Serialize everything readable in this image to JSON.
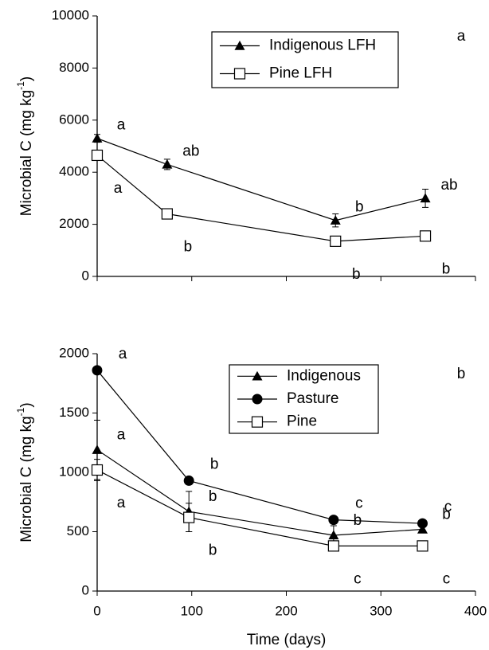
{
  "chart_data": [
    {
      "type": "line",
      "panel_label": "a",
      "ylabel": [
        "Microbial C (mg kg",
        "-1",
        ")"
      ],
      "xlim": [
        0,
        400
      ],
      "xticks": [
        0,
        100,
        200,
        300,
        400
      ],
      "show_xtick_labels": false,
      "ylim": [
        0,
        10000
      ],
      "yticks": [
        0,
        2000,
        4000,
        6000,
        8000,
        10000
      ],
      "x": [
        0,
        74,
        252,
        347
      ],
      "series": [
        {
          "name": "Indigenous LFH",
          "marker": "triangle",
          "color": "#000000",
          "values": [
            5300,
            4300,
            2150,
            3000
          ],
          "errors": [
            150,
            200,
            250,
            350
          ],
          "annotations": [
            "a",
            "ab",
            "b",
            "ab"
          ]
        },
        {
          "name": "Pine LFH",
          "marker": "square",
          "color": "#000000",
          "values": [
            4650,
            2400,
            1350,
            1550
          ],
          "errors": [
            150,
            100,
            80,
            80
          ],
          "annotations": [
            "a",
            "b",
            "b",
            "b"
          ]
        }
      ]
    },
    {
      "type": "line",
      "panel_label": "b",
      "ylabel": [
        "Microbial C (mg kg",
        "-1",
        ")"
      ],
      "xlabel": "Time (days)",
      "xlim": [
        0,
        400
      ],
      "xticks": [
        0,
        100,
        200,
        300,
        400
      ],
      "show_xtick_labels": true,
      "ylim": [
        0,
        2000
      ],
      "yticks": [
        0,
        500,
        1000,
        1500,
        2000
      ],
      "x": [
        0,
        97,
        250,
        344
      ],
      "series": [
        {
          "name": "Indigenous",
          "marker": "triangle",
          "color": "#000000",
          "values": [
            1190,
            670,
            470,
            520
          ],
          "errors": [
            250,
            170,
            80,
            20
          ],
          "annotations": [
            "a",
            "b",
            "b",
            "b"
          ]
        },
        {
          "name": "Pasture",
          "marker": "circle",
          "color": "#000000",
          "values": [
            1860,
            930,
            600,
            570
          ],
          "errors": [
            20,
            20,
            20,
            20
          ],
          "annotations": [
            "a",
            "b",
            "c",
            "c"
          ]
        },
        {
          "name": "Pine",
          "marker": "square",
          "color": "#000000",
          "values": [
            1020,
            620,
            380,
            380
          ],
          "errors": [
            90,
            120,
            30,
            20
          ],
          "annotations": [
            "a",
            "b",
            "c",
            "c"
          ]
        }
      ]
    }
  ]
}
